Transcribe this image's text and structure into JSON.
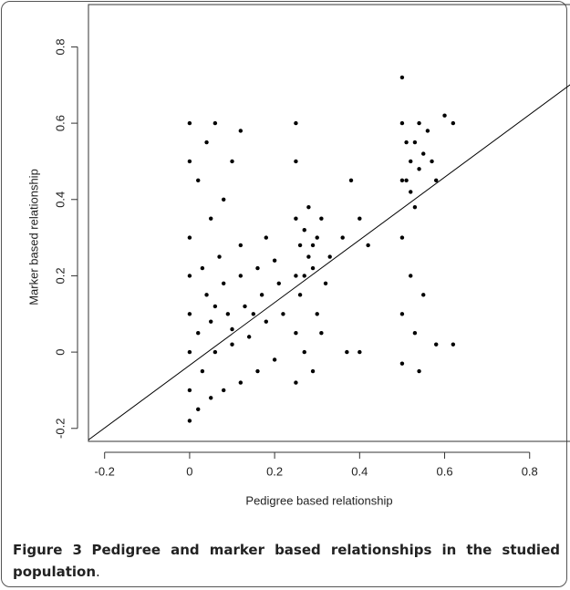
{
  "chart_data": {
    "type": "scatter",
    "x_label": "Pedigree based relationship",
    "y_label": "Marker based relationship",
    "xlim": [
      -0.238,
      0.91
    ],
    "ylim": [
      -0.234,
      0.911
    ],
    "xticks": [
      -0.2,
      0,
      0.2,
      0.4,
      0.6,
      0.8
    ],
    "yticks": [
      -0.2,
      0,
      0.2,
      0.4,
      0.6,
      0.8
    ],
    "series": [
      {
        "color": "#000000",
        "x": [
          0,
          0,
          0,
          0,
          0,
          0,
          0,
          0,
          0.02,
          0.05,
          0.08,
          0.12,
          0.16,
          0.2,
          0.03,
          0.06,
          0.1,
          0.14,
          0.18,
          0.22,
          0.02,
          0.05,
          0.09,
          0.13,
          0.17,
          0.21,
          0.04,
          0.08,
          0.12,
          0.16,
          0.2,
          0.03,
          0.07,
          0.12,
          0.18,
          0.1,
          0.15,
          0.06,
          0.02,
          0.04,
          0.06,
          0.1,
          0.12,
          0.08,
          0.05,
          0.25,
          0.25,
          0.25,
          0.25,
          0.25,
          0.25,
          0.26,
          0.27,
          0.28,
          0.29,
          0.3,
          0.27,
          0.29,
          0.31,
          0.32,
          0.26,
          0.28,
          0.3,
          0.27,
          0.29,
          0.31,
          0.33,
          0.36,
          0.38,
          0.4,
          0.42,
          0.37,
          0.4,
          0.5,
          0.5,
          0.5,
          0.5,
          0.5,
          0.5,
          0.51,
          0.52,
          0.53,
          0.54,
          0.55,
          0.56,
          0.52,
          0.54,
          0.57,
          0.51,
          0.53,
          0.58,
          0.52,
          0.53,
          0.55,
          0.6,
          0.62,
          0.62,
          0.58,
          0.54
        ],
        "values": [
          -0.18,
          -0.1,
          0,
          0.1,
          0.2,
          0.3,
          0.5,
          0.6,
          -0.15,
          -0.12,
          -0.1,
          -0.08,
          -0.05,
          -0.02,
          -0.05,
          0,
          0.02,
          0.04,
          0.08,
          0.1,
          0.05,
          0.08,
          0.1,
          0.12,
          0.15,
          0.18,
          0.15,
          0.18,
          0.2,
          0.22,
          0.24,
          0.22,
          0.25,
          0.28,
          0.3,
          0.06,
          0.1,
          0.12,
          0.45,
          0.55,
          0.6,
          0.5,
          0.58,
          0.4,
          0.35,
          -0.08,
          0.05,
          0.2,
          0.35,
          0.5,
          0.6,
          0.15,
          0.2,
          0.25,
          0.28,
          0.3,
          0.32,
          0.22,
          0.35,
          0.18,
          0.28,
          0.38,
          0.1,
          0,
          -0.05,
          0.05,
          0.25,
          0.3,
          0.45,
          0.35,
          0.28,
          0,
          0,
          -0.03,
          0.1,
          0.3,
          0.45,
          0.6,
          0.72,
          0.45,
          0.5,
          0.55,
          0.48,
          0.52,
          0.58,
          0.42,
          0.6,
          0.5,
          0.55,
          0.38,
          0.45,
          0.2,
          0.05,
          0.15,
          0.62,
          0.6,
          0.02,
          0.02,
          -0.05
        ]
      }
    ],
    "fit_line": {
      "color": "#000000",
      "x": [
        -0.238,
        0.91
      ],
      "values": [
        -0.23,
        0.713
      ]
    }
  },
  "caption": {
    "label": "Figure 3",
    "text": "Pedigree and marker based relationships in the studied population",
    "end": "."
  }
}
